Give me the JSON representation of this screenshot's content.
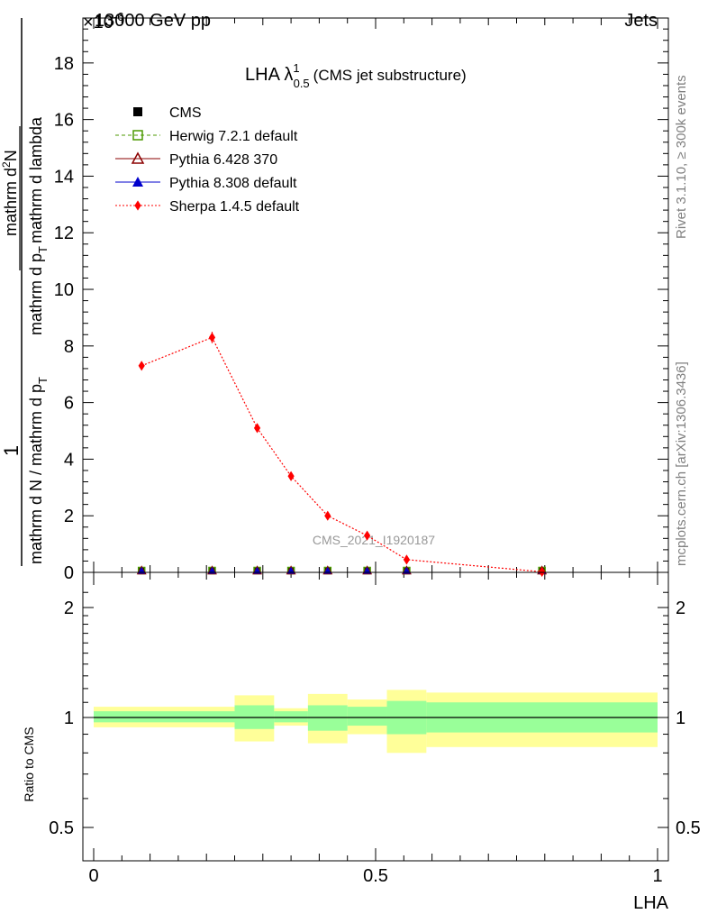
{
  "header": {
    "energy_label": "13000 GeV pp",
    "exponent_label": "×10",
    "exponent_sup": "-6",
    "process_label": "Jets"
  },
  "side_labels": {
    "rivet": "Rivet 3.1.10, ≥ 300k events",
    "mcplots": "mcplots.cern.ch [arXiv:1306.3436]"
  },
  "chart_data": [
    {
      "type": "line",
      "panel": "main",
      "title_main": "LHA λ",
      "title_sup": "1",
      "title_sub": "0.5",
      "title_suffix": "(CMS jet substructure)",
      "watermark": "CMS_2021_I1920187",
      "ylabel": {
        "prefix": "1",
        "denominator": "mathrm d N / mathrm d p",
        "denominator_sub": "T",
        "numerator": "mathrm d",
        "numerator_sup": "2",
        "numerator_end": "N",
        "bottom_line": "mathrm d p",
        "bottom_line_sub": "T",
        "bottom_line_end": "mathrm d lambda"
      },
      "xlim": [
        0,
        1
      ],
      "ylim": [
        0,
        19
      ],
      "yticks": [
        0,
        2,
        4,
        6,
        8,
        10,
        12,
        14,
        16,
        18
      ],
      "ytick_labels": [
        "0",
        "2",
        "4",
        "6",
        "8",
        "10",
        "12",
        "14",
        "16",
        "18"
      ],
      "bin_centers": [
        0.085,
        0.21,
        0.29,
        0.35,
        0.415,
        0.485,
        0.555,
        0.795
      ],
      "series": [
        {
          "name": "CMS",
          "color": "#000000",
          "marker": "square-filled",
          "values": [
            0.02,
            0.02,
            0.02,
            0.02,
            0.02,
            0.02,
            0.02,
            0.02
          ]
        },
        {
          "name": "Herwig 7.2.1 default",
          "color": "#4c9a00",
          "marker": "square-open",
          "dash": "4,3",
          "values": [
            0.02,
            0.02,
            0.02,
            0.02,
            0.02,
            0.02,
            0.02,
            0.02
          ]
        },
        {
          "name": "Pythia 6.428 370",
          "color": "#8b0000",
          "marker": "triangle-open",
          "values": [
            0.02,
            0.02,
            0.02,
            0.02,
            0.02,
            0.02,
            0.02,
            0.02
          ]
        },
        {
          "name": "Pythia 8.308 default",
          "color": "#0000cc",
          "marker": "triangle-filled",
          "values": [
            0.02,
            0.02,
            0.02,
            0.02,
            0.02,
            0.02,
            0.02,
            0.02
          ]
        },
        {
          "name": "Sherpa 1.4.5 default",
          "color": "#ff0000",
          "marker": "diamond-filled",
          "dash": "2,2",
          "values": [
            7.3,
            8.3,
            5.1,
            3.4,
            2.0,
            1.3,
            0.45,
            0.02
          ],
          "errors": [
            0.12,
            0.2,
            0.15,
            0.12,
            0.08,
            0.06,
            0.04,
            0.01
          ]
        }
      ]
    },
    {
      "type": "area",
      "panel": "ratio",
      "ylabel": "Ratio to CMS",
      "xlabel": "LHA",
      "ylim": [
        0.4,
        2.4
      ],
      "yscale": "log",
      "yticks": [
        0.5,
        1,
        2
      ],
      "ytick_labels": [
        "0.5",
        "1",
        "2"
      ],
      "xticks": [
        0,
        0.5,
        1
      ],
      "xtick_labels": [
        "0",
        "0.5",
        "1"
      ],
      "reference": 1,
      "bins": [
        {
          "lo": 0.0,
          "hi": 0.25,
          "inner": [
            0.97,
            1.04
          ],
          "outer": [
            0.94,
            1.07
          ]
        },
        {
          "lo": 0.25,
          "hi": 0.32,
          "inner": [
            0.93,
            1.08
          ],
          "outer": [
            0.86,
            1.15
          ]
        },
        {
          "lo": 0.32,
          "hi": 0.38,
          "inner": [
            0.97,
            1.04
          ],
          "outer": [
            0.95,
            1.06
          ]
        },
        {
          "lo": 0.38,
          "hi": 0.45,
          "inner": [
            0.92,
            1.08
          ],
          "outer": [
            0.85,
            1.16
          ]
        },
        {
          "lo": 0.45,
          "hi": 0.52,
          "inner": [
            0.95,
            1.07
          ],
          "outer": [
            0.9,
            1.12
          ]
        },
        {
          "lo": 0.52,
          "hi": 0.59,
          "inner": [
            0.9,
            1.11
          ],
          "outer": [
            0.8,
            1.19
          ]
        },
        {
          "lo": 0.59,
          "hi": 1.0,
          "inner": [
            0.91,
            1.1
          ],
          "outer": [
            0.83,
            1.17
          ]
        }
      ]
    }
  ],
  "colors": {
    "inner_band": "#99ff99",
    "outer_band": "#ffff99",
    "side_text": "#808080"
  }
}
